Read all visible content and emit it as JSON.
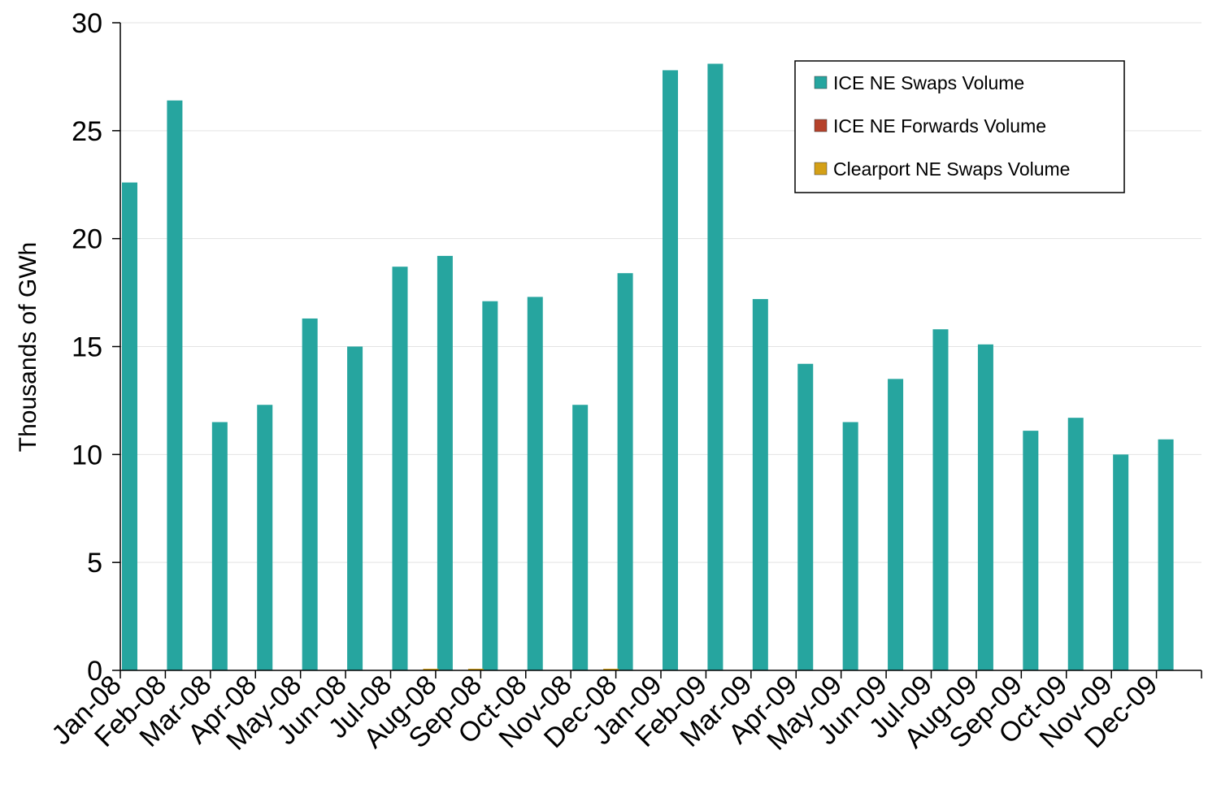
{
  "chart_data": {
    "type": "bar",
    "title": "",
    "xlabel": "",
    "ylabel": "Thousands of GWh",
    "ylim": [
      0,
      30
    ],
    "yticks": [
      0,
      5,
      10,
      15,
      20,
      25,
      30
    ],
    "grid": true,
    "legend_position": "top-right",
    "categories": [
      "Jan-08",
      "Feb-08",
      "Mar-08",
      "Apr-08",
      "May-08",
      "Jun-08",
      "Jul-08",
      "Aug-08",
      "Sep-08",
      "Oct-08",
      "Nov-08",
      "Dec-08",
      "Jan-09",
      "Feb-09",
      "Mar-09",
      "Apr-09",
      "May-09",
      "Jun-09",
      "Jul-09",
      "Aug-09",
      "Sep-09",
      "Oct-09",
      "Nov-09",
      "Dec-09"
    ],
    "series": [
      {
        "name": "ICE NE Swaps Volume",
        "color": "#26A59F",
        "values": [
          22.6,
          26.4,
          11.5,
          12.3,
          16.3,
          15.0,
          18.7,
          19.2,
          17.1,
          17.3,
          12.3,
          18.4,
          27.8,
          28.1,
          17.2,
          14.2,
          11.5,
          13.5,
          15.8,
          15.1,
          11.1,
          11.7,
          10.0,
          10.7
        ]
      },
      {
        "name": "ICE NE Forwards Volume",
        "color": "#B5412A",
        "values": [
          0,
          0,
          0,
          0,
          0,
          0,
          0,
          0,
          0,
          0,
          0,
          0,
          0,
          0,
          0,
          0,
          0,
          0,
          0,
          0,
          0,
          0,
          0,
          0
        ]
      },
      {
        "name": "Clearport NE Swaps Volume",
        "color": "#D4A017",
        "values": [
          0,
          0,
          0,
          0,
          0,
          0,
          0.05,
          0.05,
          0,
          0,
          0.05,
          0,
          0,
          0,
          0,
          0,
          0,
          0,
          0,
          0,
          0,
          0,
          0,
          0
        ]
      }
    ]
  }
}
